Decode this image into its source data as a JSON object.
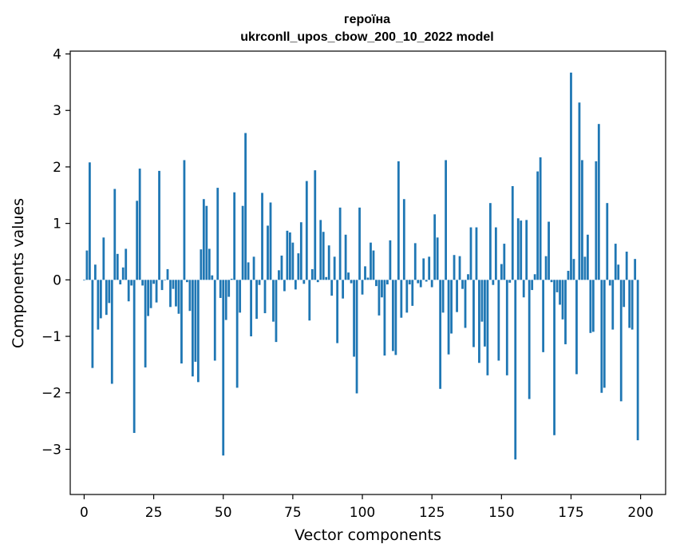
{
  "chart_data": {
    "type": "bar",
    "title": "героїна",
    "subtitle": "ukrconll_upos_cbow_200_10_2022 model",
    "xlabel": "Vector components",
    "ylabel": "Components values",
    "xlim": [
      -5,
      209
    ],
    "ylim": [
      -3.8,
      4.05
    ],
    "xticks": [
      0,
      25,
      50,
      75,
      100,
      125,
      150,
      175,
      200
    ],
    "yticks": [
      -3,
      -2,
      -1,
      0,
      1,
      2,
      3,
      4
    ],
    "xtick_labels": [
      "0",
      "25",
      "50",
      "75",
      "100",
      "125",
      "150",
      "175",
      "200"
    ],
    "ytick_labels": [
      "−3",
      "−2",
      "−1",
      "0",
      "1",
      "2",
      "3",
      "4"
    ],
    "bar_color": "#1f77b4",
    "grid": false,
    "x": [
      0,
      1,
      2,
      3,
      4,
      5,
      6,
      7,
      8,
      9,
      10,
      11,
      12,
      13,
      14,
      15,
      16,
      17,
      18,
      19,
      20,
      21,
      22,
      23,
      24,
      25,
      26,
      27,
      28,
      29,
      30,
      31,
      32,
      33,
      34,
      35,
      36,
      37,
      38,
      39,
      40,
      41,
      42,
      43,
      44,
      45,
      46,
      47,
      48,
      49,
      50,
      51,
      52,
      53,
      54,
      55,
      56,
      57,
      58,
      59,
      60,
      61,
      62,
      63,
      64,
      65,
      66,
      67,
      68,
      69,
      70,
      71,
      72,
      73,
      74,
      75,
      76,
      77,
      78,
      79,
      80,
      81,
      82,
      83,
      84,
      85,
      86,
      87,
      88,
      89,
      90,
      91,
      92,
      93,
      94,
      95,
      96,
      97,
      98,
      99,
      100,
      101,
      102,
      103,
      104,
      105,
      106,
      107,
      108,
      109,
      110,
      111,
      112,
      113,
      114,
      115,
      116,
      117,
      118,
      119,
      120,
      121,
      122,
      123,
      124,
      125,
      126,
      127,
      128,
      129,
      130,
      131,
      132,
      133,
      134,
      135,
      136,
      137,
      138,
      139,
      140,
      141,
      142,
      143,
      144,
      145,
      146,
      147,
      148,
      149,
      150,
      151,
      152,
      153,
      154,
      155,
      156,
      157,
      158,
      159,
      160,
      161,
      162,
      163,
      164,
      165,
      166,
      167,
      168,
      169,
      170,
      171,
      172,
      173,
      174,
      175,
      176,
      177,
      178,
      179,
      180,
      181,
      182,
      183,
      184,
      185,
      186,
      187,
      188,
      189,
      190,
      191,
      192,
      193,
      194,
      195,
      196,
      197,
      198,
      199
    ],
    "values": [
      -0.01,
      0.52,
      2.08,
      -1.56,
      0.27,
      -0.88,
      -0.68,
      0.75,
      -0.62,
      -0.41,
      -1.84,
      1.61,
      0.46,
      -0.08,
      0.22,
      0.55,
      -0.38,
      -0.1,
      -2.71,
      1.4,
      1.97,
      -0.1,
      -1.55,
      -0.64,
      -0.5,
      -0.07,
      -0.4,
      1.93,
      -0.18,
      0.0,
      0.19,
      -0.48,
      -0.16,
      -0.47,
      -0.6,
      -1.48,
      2.12,
      -0.04,
      -0.55,
      -1.71,
      -1.45,
      -1.81,
      0.54,
      1.43,
      1.31,
      0.55,
      0.08,
      -1.43,
      1.63,
      -0.32,
      -3.11,
      -0.71,
      -0.3,
      0.02,
      1.55,
      -1.91,
      -0.58,
      1.31,
      2.6,
      0.31,
      -1.0,
      0.41,
      -0.69,
      -0.09,
      1.54,
      -0.59,
      0.96,
      1.37,
      -0.74,
      -1.1,
      0.17,
      0.43,
      -0.2,
      0.87,
      0.84,
      0.66,
      -0.17,
      0.47,
      1.02,
      -0.07,
      1.75,
      -0.72,
      0.19,
      1.94,
      -0.04,
      1.06,
      0.85,
      0.05,
      0.61,
      -0.28,
      0.41,
      -1.12,
      1.28,
      -0.33,
      0.8,
      0.13,
      -0.06,
      -1.36,
      -2.01,
      1.28,
      -0.26,
      0.24,
      0.04,
      0.66,
      0.52,
      -0.11,
      -0.63,
      -0.31,
      -1.34,
      -0.08,
      0.7,
      -1.26,
      -1.33,
      2.1,
      -0.67,
      1.43,
      -0.58,
      -0.08,
      -0.46,
      0.65,
      -0.06,
      -0.13,
      0.38,
      -0.03,
      0.41,
      -0.13,
      1.16,
      0.75,
      -1.93,
      -0.58,
      2.12,
      -1.32,
      -0.95,
      0.44,
      -0.57,
      0.42,
      -0.16,
      -0.85,
      0.1,
      0.93,
      -1.19,
      0.93,
      -1.47,
      -0.74,
      -1.18,
      -1.69,
      1.36,
      -0.09,
      0.93,
      -1.43,
      0.28,
      0.64,
      -1.69,
      -0.05,
      1.66,
      -3.18,
      1.09,
      1.05,
      -0.31,
      1.06,
      -2.11,
      -0.18,
      0.1,
      1.92,
      2.17,
      -1.28,
      0.42,
      1.03,
      -0.04,
      -2.75,
      -0.22,
      -0.44,
      -0.7,
      -1.14,
      0.16,
      3.67,
      0.37,
      -1.67,
      3.14,
      2.12,
      0.41,
      0.8,
      -0.94,
      -0.92,
      2.1,
      2.76,
      -2.0,
      -1.91,
      1.36,
      -0.1,
      -0.88,
      0.64,
      0.27,
      -2.15,
      -0.48,
      0.5,
      -0.85,
      -0.88,
      0.37,
      -2.84
    ]
  }
}
